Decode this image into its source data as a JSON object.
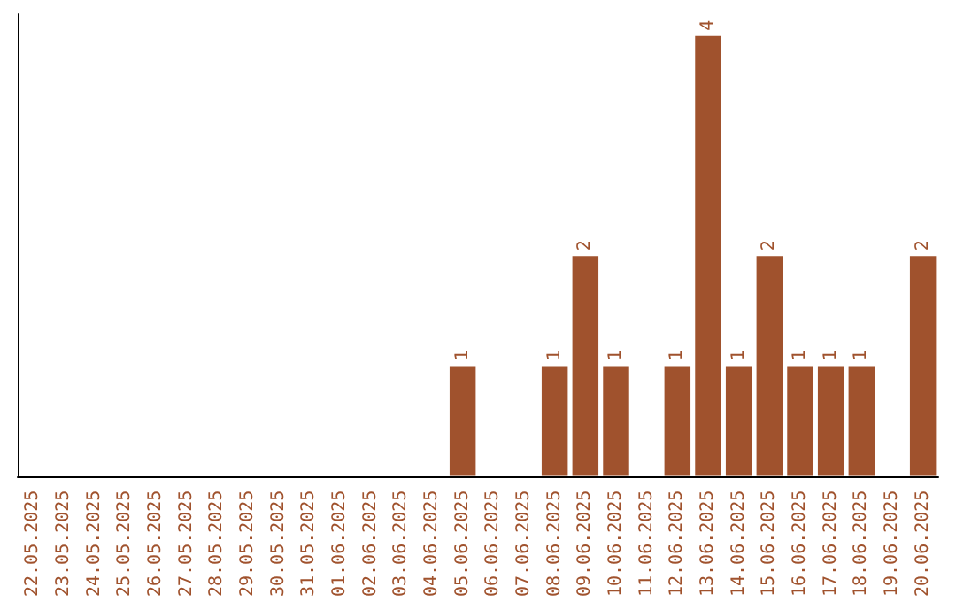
{
  "chart_data": {
    "type": "bar",
    "categories": [
      "22.05.2025",
      "23.05.2025",
      "24.05.2025",
      "25.05.2025",
      "26.05.2025",
      "27.05.2025",
      "28.05.2025",
      "29.05.2025",
      "30.05.2025",
      "31.05.2025",
      "01.06.2025",
      "02.06.2025",
      "03.06.2025",
      "04.06.2025",
      "05.06.2025",
      "06.06.2025",
      "07.06.2025",
      "08.06.2025",
      "09.06.2025",
      "10.06.2025",
      "11.06.2025",
      "12.06.2025",
      "13.06.2025",
      "14.06.2025",
      "15.06.2025",
      "16.06.2025",
      "17.06.2025",
      "18.06.2025",
      "19.06.2025",
      "20.06.2025"
    ],
    "values": [
      null,
      null,
      null,
      null,
      null,
      null,
      null,
      null,
      null,
      null,
      null,
      null,
      null,
      null,
      1,
      null,
      null,
      1,
      2,
      1,
      null,
      1,
      4,
      1,
      2,
      1,
      1,
      1,
      null,
      2
    ],
    "color": "#a0522d",
    "data_labels": true
  }
}
